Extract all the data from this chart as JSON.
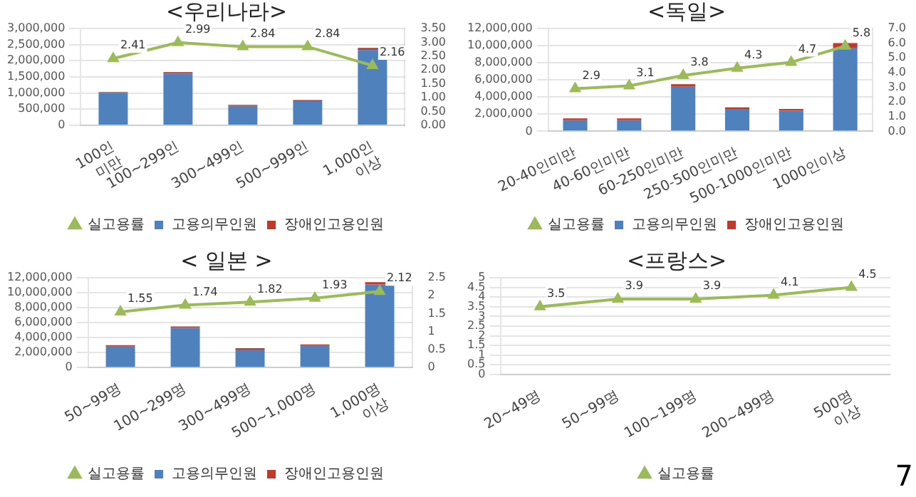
{
  "chart_data": [
    {
      "type": "bar",
      "title": "<우리나라>",
      "categories": [
        "100인 미만",
        "100~299인",
        "300~499인",
        "500~999인",
        "1,000인 이상"
      ],
      "stacked": true,
      "grid": "y",
      "legend": "bottom",
      "marker": "triangle",
      "series": [
        {
          "name": "고용의무인원",
          "color": "#4f81bd",
          "values": [
            1000000,
            1600000,
            600000,
            750000,
            2330000
          ]
        },
        {
          "name": "장애인고용인원",
          "color": "#c0392b",
          "values": [
            30000,
            50000,
            30000,
            30000,
            70000
          ]
        },
        {
          "name": "실고용률",
          "type": "line",
          "axis": "y2",
          "color": "#9bbb59",
          "values": [
            2.41,
            2.99,
            2.84,
            2.84,
            2.16
          ],
          "value_labels": [
            "2.41",
            "2.99",
            "2.84",
            "2.84",
            "2.16"
          ]
        }
      ],
      "ylim": [
        0,
        3000000
      ],
      "yticks": [
        0,
        {
          "value": 500000,
          "label": "500,000"
        },
        {
          "value": 1000000,
          "label": "1,000,000"
        },
        {
          "value": 1500000,
          "label": "1,500,000"
        },
        {
          "value": 2000000,
          "label": "2,000,000"
        },
        {
          "value": 2500000,
          "label": "2,500,000"
        },
        {
          "value": 3000000,
          "label": "3,000,000"
        }
      ],
      "y2lim": [
        0,
        3.5
      ],
      "y2ticks": [
        {
          "value": 0,
          "label": "0.00"
        },
        {
          "value": 0.5,
          "label": "0.50"
        },
        {
          "value": 1,
          "label": "1.00"
        },
        {
          "value": 1.5,
          "label": "1.50"
        },
        {
          "value": 2,
          "label": "2.00"
        },
        {
          "value": 2.5,
          "label": "2.50"
        },
        {
          "value": 3,
          "label": "3.00"
        },
        {
          "value": 3.5,
          "label": "3.50"
        }
      ]
    },
    {
      "type": "bar",
      "title": "<독일>",
      "categories": [
        "20-40인미만",
        "40-60인미만",
        "60-250인미만",
        "250-500인미만",
        "500-1000인미만",
        "1000인이상"
      ],
      "stacked": true,
      "grid": "y",
      "legend": "bottom",
      "marker": "triangle",
      "series": [
        {
          "name": "고용의무인원",
          "color": "#4f81bd",
          "values": [
            1300000,
            1300000,
            5200000,
            2600000,
            2400000,
            9700000
          ]
        },
        {
          "name": "장애인고용인원",
          "color": "#c0392b",
          "values": [
            200000,
            200000,
            300000,
            200000,
            200000,
            600000
          ]
        },
        {
          "name": "실고용률",
          "type": "line",
          "axis": "y2",
          "color": "#9bbb59",
          "values": [
            2.9,
            3.1,
            3.8,
            4.3,
            4.7,
            5.8
          ],
          "value_labels": [
            "2.9",
            "3.1",
            "3.8",
            "4.3",
            "4.7",
            "5.8"
          ]
        }
      ],
      "ylim": [
        0,
        12000000
      ],
      "yticks": [
        0,
        {
          "value": 2000000,
          "label": "2,000,000"
        },
        {
          "value": 4000000,
          "label": "4,000,000"
        },
        {
          "value": 6000000,
          "label": "6,000,000"
        },
        {
          "value": 8000000,
          "label": "8,000,000"
        },
        {
          "value": 10000000,
          "label": "10,000,000"
        },
        {
          "value": 12000000,
          "label": "12,000,000"
        }
      ],
      "y2lim": [
        0,
        7
      ],
      "y2ticks": [
        {
          "value": 0,
          "label": "0.0"
        },
        {
          "value": 1,
          "label": "1.0"
        },
        {
          "value": 2,
          "label": "2.0"
        },
        {
          "value": 3,
          "label": "3.0"
        },
        {
          "value": 4,
          "label": "4.0"
        },
        {
          "value": 5,
          "label": "5.0"
        },
        {
          "value": 6,
          "label": "6.0"
        },
        {
          "value": 7,
          "label": "7.0"
        }
      ]
    },
    {
      "type": "bar",
      "title": "< 일본 >",
      "categories": [
        "50~99명",
        "100~299명",
        "300~499명",
        "500~1,000명",
        "1,000명 이상"
      ],
      "stacked": true,
      "grid": "y",
      "legend": "bottom",
      "marker": "triangle",
      "series": [
        {
          "name": "고용의무인원",
          "color": "#4f81bd",
          "values": [
            2800000,
            5300000,
            2400000,
            2900000,
            11100000
          ]
        },
        {
          "name": "장애인고용인원",
          "color": "#c0392b",
          "values": [
            200000,
            200000,
            200000,
            200000,
            300000
          ]
        },
        {
          "name": "실고용률",
          "type": "line",
          "axis": "y2",
          "color": "#9bbb59",
          "values": [
            1.55,
            1.74,
            1.82,
            1.93,
            2.12
          ],
          "value_labels": [
            "1.55",
            "1.74",
            "1.82",
            "1.93",
            "2.12"
          ]
        }
      ],
      "ylim": [
        0,
        12000000
      ],
      "yticks": [
        0,
        {
          "value": 2000000,
          "label": "2,000,000"
        },
        {
          "value": 4000000,
          "label": "4,000,000"
        },
        {
          "value": 6000000,
          "label": "6,000,000"
        },
        {
          "value": 8000000,
          "label": "8,000,000"
        },
        {
          "value": 10000000,
          "label": "10,000,000"
        },
        {
          "value": 12000000,
          "label": "12,000,000"
        }
      ],
      "y2lim": [
        0,
        2.5
      ],
      "y2ticks": [
        0,
        0.5,
        1,
        1.5,
        2,
        2.5
      ]
    },
    {
      "type": "line",
      "title": "<프랑스>",
      "categories": [
        "20~49명",
        "50~99명",
        "100~199명",
        "200~499명",
        "500명 이상"
      ],
      "grid": "y",
      "legend": "bottom",
      "marker": "triangle",
      "series": [
        {
          "name": "실고용률",
          "color": "#9bbb59",
          "values": [
            3.5,
            3.9,
            3.9,
            4.1,
            4.5
          ],
          "value_labels": [
            "3.5",
            "3.9",
            "3.9",
            "4.1",
            "4.5"
          ]
        }
      ],
      "ylim": [
        0,
        5
      ],
      "yticks": [
        0,
        0.5,
        1,
        1.5,
        2,
        2.5,
        3,
        3.5,
        4,
        4.5,
        5
      ],
      "annotations": [
        "7"
      ]
    }
  ]
}
